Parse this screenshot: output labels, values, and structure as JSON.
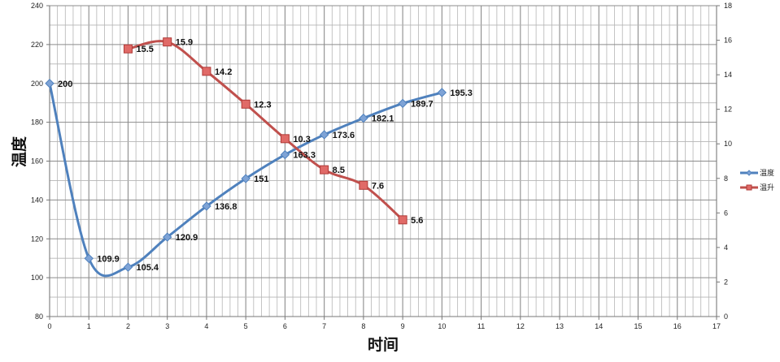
{
  "chart_data": {
    "type": "line",
    "title": "",
    "xlabel": "时间",
    "ylabel": "温度",
    "y2label": "",
    "xlim": [
      0,
      17
    ],
    "ylim": [
      80,
      240
    ],
    "y2lim": [
      0,
      18
    ],
    "x_ticks": [
      0,
      1,
      2,
      3,
      4,
      5,
      6,
      7,
      8,
      9,
      10,
      11,
      12,
      13,
      14,
      15,
      16,
      17
    ],
    "y_ticks": [
      80,
      100,
      120,
      140,
      160,
      180,
      200,
      220,
      240
    ],
    "y2_ticks": [
      0,
      2,
      4,
      6,
      8,
      10,
      12,
      14,
      16,
      18
    ],
    "grid": true,
    "legend_position": "right",
    "series": [
      {
        "name": "温度",
        "axis": "left",
        "color": "#4f81bd",
        "marker": "diamond",
        "smooth": true,
        "x": [
          0,
          1,
          2,
          3,
          4,
          5,
          6,
          7,
          8,
          9,
          10
        ],
        "values": [
          200,
          109.9,
          105.4,
          120.9,
          136.8,
          151,
          163.3,
          173.6,
          182.1,
          189.7,
          195.3
        ],
        "labels": [
          "200",
          "109.9",
          "105.4",
          "120.9",
          "136.8",
          "151",
          "163.3",
          "173.6",
          "182.1",
          "189.7",
          "195.3"
        ]
      },
      {
        "name": "温升",
        "axis": "right",
        "color": "#c0504d",
        "marker": "square",
        "smooth": true,
        "x": [
          2,
          3,
          4,
          5,
          6,
          7,
          8,
          9
        ],
        "values": [
          15.5,
          15.9,
          14.2,
          12.3,
          10.3,
          8.5,
          7.6,
          5.6
        ],
        "labels": [
          "15.5",
          "15.9",
          "14.2",
          "12.3",
          "10.3",
          "8.5",
          "7.6",
          "5.6"
        ]
      }
    ]
  }
}
